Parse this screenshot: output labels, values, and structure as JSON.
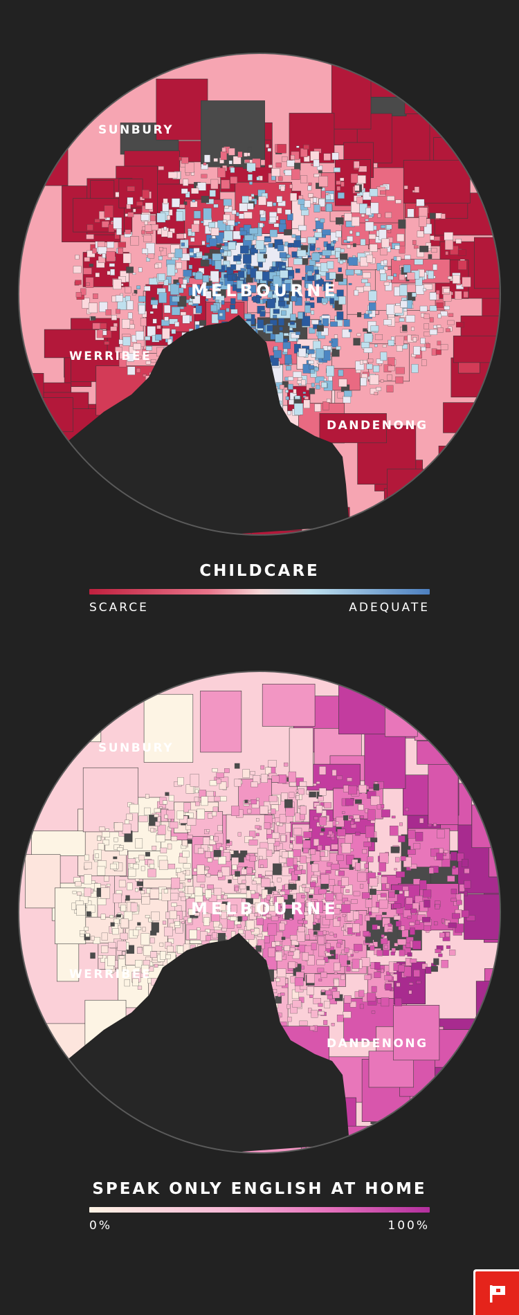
{
  "maps": [
    {
      "id": "childcare",
      "labels": {
        "sunbury": "SUNBURY",
        "melbourne": "MELBOURNE",
        "werribee": "WERRIBEE",
        "dandenong": "DANDENONG"
      },
      "legend": {
        "title": "CHILDCARE",
        "min_label": "SCARCE",
        "max_label": "ADEQUATE"
      },
      "colors": {
        "scale": [
          "#b3183a",
          "#d33b57",
          "#e96a82",
          "#f6a5b2",
          "#fbd9dd",
          "#eaeaf4",
          "#bfe0ee",
          "#86bcdc",
          "#4c86c3",
          "#2a5a9e"
        ],
        "no_data": "#4a4a4a",
        "water": "#262626"
      }
    },
    {
      "id": "english",
      "labels": {
        "sunbury": "SUNBURY",
        "melbourne": "MELBOURNE",
        "werribee": "WERRIBEE",
        "dandenong": "DANDENONG"
      },
      "legend": {
        "title": "SPEAK ONLY ENGLISH AT HOME",
        "min_label": "0%",
        "max_label": "100%"
      },
      "colors": {
        "scale": [
          "#fdf4e4",
          "#fde5dd",
          "#fbd0d8",
          "#f8b5ce",
          "#f296c3",
          "#e876ba",
          "#d856ac",
          "#c33c9f",
          "#a82b8f"
        ],
        "no_data": "#4a4a4a",
        "water": "#262626"
      }
    }
  ],
  "flag_button": {
    "icon": "flag-icon"
  }
}
